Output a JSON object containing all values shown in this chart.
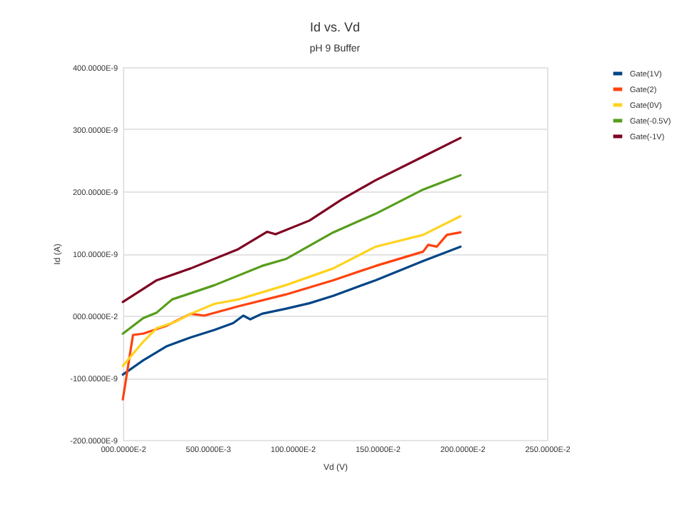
{
  "chart_data": {
    "type": "line",
    "title": "Id vs. Vd",
    "subtitle": "pH 9 Buffer",
    "xlabel": "Vd (V)",
    "ylabel": "Id (A)",
    "xlim": [
      0,
      2.5
    ],
    "ylim": [
      -2e-07,
      4e-07
    ],
    "xticks": [
      {
        "value": 0,
        "label": "000.0000E-2"
      },
      {
        "value": 0.5,
        "label": "500.0000E-3"
      },
      {
        "value": 1,
        "label": "100.0000E-2"
      },
      {
        "value": 1.5,
        "label": "150.0000E-2"
      },
      {
        "value": 2,
        "label": "200.0000E-2"
      },
      {
        "value": 2.5,
        "label": "250.0000E-2"
      }
    ],
    "yticks": [
      {
        "value": -2e-07,
        "label": "-200.0000E-9"
      },
      {
        "value": -1e-07,
        "label": "-100.0000E-9"
      },
      {
        "value": 0,
        "label": "000.0000E-2"
      },
      {
        "value": 1e-07,
        "label": "100.0000E-9"
      },
      {
        "value": 2e-07,
        "label": "200.0000E-9"
      },
      {
        "value": 3e-07,
        "label": "300.0000E-9"
      },
      {
        "value": 4e-07,
        "label": "400.0000E-9"
      }
    ],
    "grid": "y",
    "legend": "right",
    "marker": "none",
    "line_style": "solid",
    "series": [
      {
        "name": "Gate(1V)",
        "color": "#004586",
        "x": [
          0,
          0.12,
          0.26,
          0.4,
          0.54,
          0.65,
          0.71,
          0.75,
          0.82,
          0.96,
          1.1,
          1.24,
          1.49,
          1.77,
          1.99
        ],
        "values": [
          -9.5e-08,
          -7.2e-08,
          -4.9e-08,
          -3.5e-08,
          -2.3e-08,
          -1.2e-08,
          0,
          -6e-09,
          3e-09,
          1.1e-08,
          2e-08,
          3.2e-08,
          5.7e-08,
          8.8e-08,
          1.11e-07
        ]
      },
      {
        "name": "Gate(2)",
        "color": "#ff420e",
        "x": [
          0,
          0.06,
          0.12,
          0.26,
          0.4,
          0.48,
          0.68,
          0.96,
          1.24,
          1.49,
          1.77,
          1.8,
          1.85,
          1.91,
          1.99
        ],
        "values": [
          -1.35e-07,
          -3.1e-08,
          -2.9e-08,
          -1.6e-08,
          3e-09,
          0,
          1.5e-08,
          3.4e-08,
          5.7e-08,
          8e-08,
          1.03e-07,
          1.14e-07,
          1.11e-07,
          1.3e-07,
          1.34e-07
        ]
      },
      {
        "name": "Gate(0V)",
        "color": "#ffd320",
        "x": [
          0,
          0.12,
          0.2,
          0.31,
          0.4,
          0.54,
          0.68,
          0.96,
          1.24,
          1.49,
          1.77,
          1.99
        ],
        "values": [
          -8.1e-08,
          -4.2e-08,
          -2e-08,
          -1e-08,
          3e-09,
          1.9e-08,
          2.6e-08,
          4.9e-08,
          7.6e-08,
          1.11e-07,
          1.3e-07,
          1.6e-07
        ]
      },
      {
        "name": "Gate(-0.5V)",
        "color": "#579d1c",
        "x": [
          0,
          0.12,
          0.2,
          0.29,
          0.54,
          0.82,
          0.96,
          1.24,
          1.49,
          1.77,
          1.99
        ],
        "values": [
          -2.9e-08,
          -4e-09,
          5e-09,
          2.6e-08,
          4.9e-08,
          8e-08,
          9.1e-08,
          1.34e-07,
          1.64e-07,
          2.03e-07,
          2.26e-07
        ]
      },
      {
        "name": "Gate(-1V)",
        "color": "#7e0021",
        "x": [
          0,
          0.2,
          0.4,
          0.68,
          0.85,
          0.9,
          1.1,
          1.29,
          1.49,
          1.77,
          1.99
        ],
        "values": [
          2.2e-08,
          5.7e-08,
          7.6e-08,
          1.07e-07,
          1.35e-07,
          1.31e-07,
          1.53e-07,
          1.87e-07,
          2.18e-07,
          2.56e-07,
          2.86e-07
        ]
      }
    ]
  }
}
